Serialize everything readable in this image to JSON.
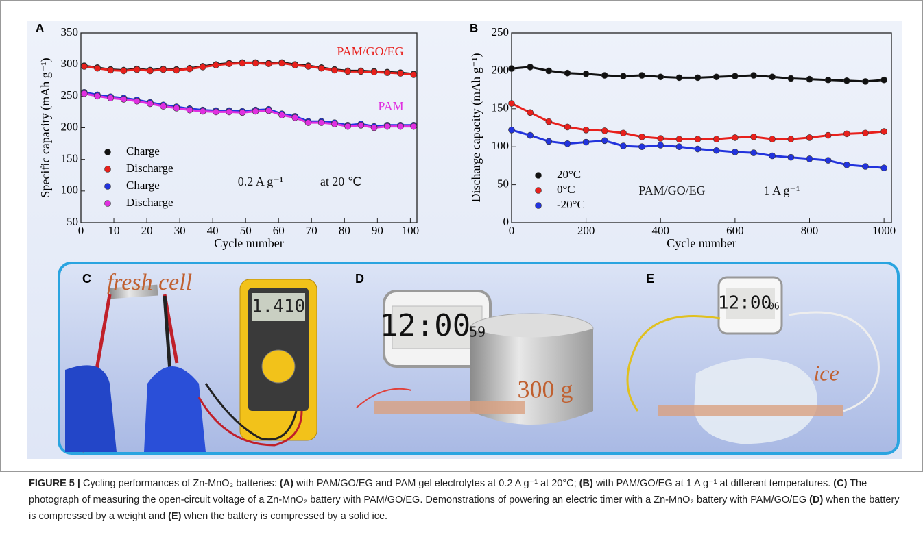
{
  "chart_data": [
    {
      "type": "scatter",
      "panel": "A",
      "xlabel": "Cycle number",
      "ylabel": "Specific capacity (mAh g⁻¹)",
      "x": [
        1,
        5,
        9,
        13,
        17,
        21,
        25,
        29,
        33,
        37,
        41,
        45,
        49,
        53,
        57,
        61,
        65,
        69,
        73,
        77,
        81,
        85,
        89,
        93,
        97,
        101
      ],
      "series": [
        {
          "name": "Charge",
          "color": "#111111",
          "values": [
            298,
            295,
            292,
            291,
            293,
            291,
            293,
            292,
            294,
            297,
            300,
            302,
            303,
            303,
            302,
            303,
            300,
            298,
            295,
            292,
            290,
            290,
            289,
            288,
            287,
            285
          ]
        },
        {
          "name": "Discharge",
          "color": "#e8201c",
          "values": [
            297,
            294,
            291,
            290,
            292,
            290,
            292,
            291,
            293,
            296,
            299,
            301,
            302,
            302,
            301,
            302,
            299,
            297,
            294,
            291,
            289,
            289,
            288,
            287,
            286,
            284
          ]
        },
        {
          "name": "Charge",
          "color": "#2233dd",
          "values": [
            256,
            252,
            249,
            247,
            244,
            240,
            236,
            233,
            230,
            228,
            227,
            227,
            226,
            228,
            229,
            222,
            218,
            210,
            210,
            208,
            204,
            206,
            202,
            204,
            204,
            204
          ]
        },
        {
          "name": "Discharge",
          "color": "#e030e0",
          "values": [
            254,
            250,
            247,
            245,
            242,
            238,
            234,
            231,
            228,
            226,
            225,
            225,
            224,
            226,
            227,
            220,
            216,
            208,
            208,
            206,
            202,
            204,
            200,
            202,
            202,
            202
          ]
        }
      ],
      "annotations": [
        {
          "text": "PAM/GO/EG",
          "color": "#e8201c"
        },
        {
          "text": "PAM",
          "color": "#e030e0"
        },
        {
          "text": "0.2 A g⁻¹",
          "color": "#111111"
        },
        {
          "text": "at 20 ℃",
          "color": "#111111"
        }
      ],
      "xlim": [
        0,
        102
      ],
      "ylim": [
        50,
        350
      ],
      "xticks": [
        0,
        10,
        20,
        30,
        40,
        50,
        60,
        70,
        80,
        90,
        100
      ],
      "yticks": [
        50,
        100,
        150,
        200,
        250,
        300,
        350
      ]
    },
    {
      "type": "scatter",
      "panel": "B",
      "xlabel": "Cycle number",
      "ylabel": "Discharge capacity (mAh g⁻¹)",
      "x": [
        0,
        50,
        100,
        150,
        200,
        250,
        300,
        350,
        400,
        450,
        500,
        550,
        600,
        650,
        700,
        750,
        800,
        850,
        900,
        950,
        1000
      ],
      "series": [
        {
          "name": "20°C",
          "color": "#111111",
          "values": [
            203,
            205,
            200,
            197,
            196,
            194,
            193,
            194,
            192,
            191,
            191,
            192,
            193,
            194,
            192,
            190,
            189,
            188,
            187,
            186,
            188
          ]
        },
        {
          "name": "0°C",
          "color": "#e8201c",
          "values": [
            157,
            145,
            133,
            126,
            122,
            121,
            118,
            113,
            111,
            110,
            110,
            110,
            112,
            113,
            110,
            110,
            112,
            115,
            117,
            118,
            120
          ]
        },
        {
          "name": "-20°C",
          "color": "#2233dd",
          "values": [
            122,
            115,
            107,
            104,
            106,
            108,
            101,
            100,
            102,
            100,
            97,
            95,
            93,
            92,
            88,
            86,
            84,
            82,
            76,
            74,
            72
          ]
        }
      ],
      "annotations": [
        {
          "text": "PAM/GO/EG",
          "color": "#111111"
        },
        {
          "text": "1 A g⁻¹",
          "color": "#111111"
        }
      ],
      "xlim": [
        0,
        1020
      ],
      "ylim": [
        0,
        250
      ],
      "xticks": [
        0,
        200,
        400,
        600,
        800,
        1000
      ],
      "yticks": [
        0,
        50,
        100,
        150,
        200,
        250
      ]
    }
  ],
  "photos": [
    {
      "label": "C",
      "caption": "fresh cell",
      "display": "1.410"
    },
    {
      "label": "D",
      "caption": "300 g",
      "display": "12:00",
      "seconds": "59"
    },
    {
      "label": "E",
      "caption": "ice",
      "display": "12:00",
      "seconds": "06"
    }
  ],
  "caption": [
    {
      "text": "FIGURE 5 |",
      "bold": true
    },
    {
      "text": " Cycling performances of Zn-MnO₂ batteries: ",
      "bold": false
    },
    {
      "text": "(A)",
      "bold": true
    },
    {
      "text": " with PAM/GO/EG and PAM gel electrolytes at 0.2 A g⁻¹ at 20°C; ",
      "bold": false
    },
    {
      "text": "(B)",
      "bold": true
    },
    {
      "text": " with PAM/GO/EG at 1 A g⁻¹ at different temperatures. ",
      "bold": false
    },
    {
      "text": "(C)",
      "bold": true
    },
    {
      "text": " The photograph of measuring the open-circuit voltage of a Zn-MnO₂ battery with PAM/GO/EG. Demonstrations of powering an electric timer with a Zn-MnO₂ battery with PAM/GO/EG ",
      "bold": false
    },
    {
      "text": "(D)",
      "bold": true
    },
    {
      "text": " when the battery is compressed by a weight and ",
      "bold": false
    },
    {
      "text": "(E)",
      "bold": true
    },
    {
      "text": " when the battery is compressed by a solid ice.",
      "bold": false
    }
  ]
}
